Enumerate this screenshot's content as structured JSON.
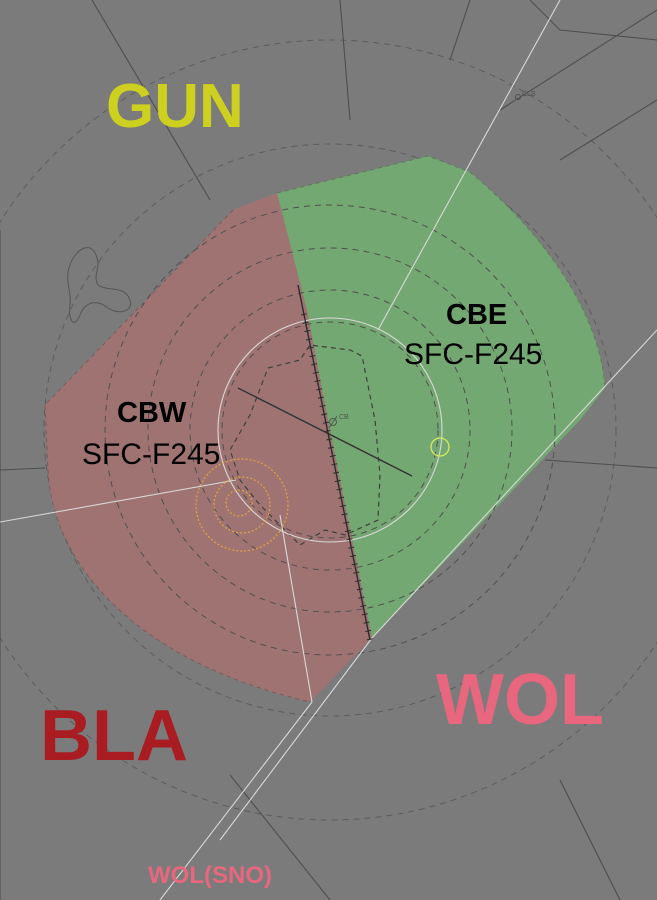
{
  "map": {
    "background_color": "#7b7b7b",
    "regions": {
      "gun": {
        "label": "GUN",
        "color": "#cdd01e"
      },
      "bla": {
        "label": "BLA",
        "color": "#a81c22"
      },
      "wol": {
        "label": "WOL",
        "color": "#e8677e"
      },
      "wol_sno": {
        "label": "WOL(SNO)",
        "color": "#e8677e"
      }
    },
    "sectors": {
      "cbe": {
        "name": "CBE",
        "limits": "SFC-F245",
        "fill_color": "#74a872"
      },
      "cbw": {
        "name": "CBW",
        "limits": "SFC-F245",
        "fill_color": "#a07474"
      }
    },
    "navaids": {
      "cb": {
        "label": "CB"
      },
      "clb": {
        "label": "CLB"
      }
    },
    "icons": [
      "vor-symbol-icon",
      "circle-marker-icon",
      "holding-circles-icon"
    ]
  }
}
